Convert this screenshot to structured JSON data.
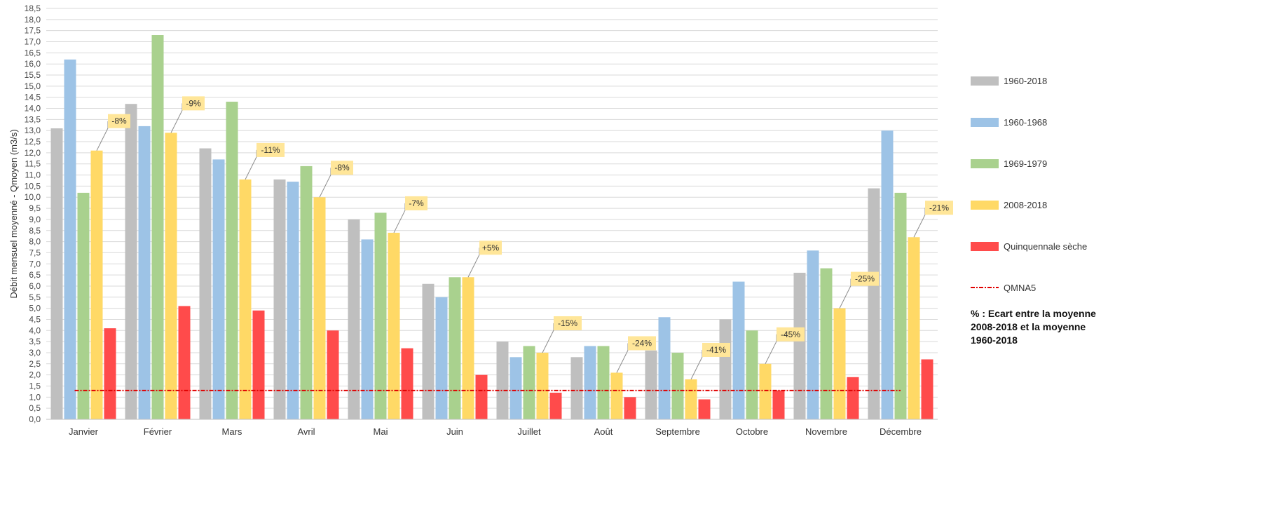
{
  "chart_data": {
    "type": "bar",
    "ylabel": "Débit mensuel moyenné - Qmoyen (m3/s)",
    "xlabel": "",
    "ylim": [
      0,
      18.5
    ],
    "y_tick_step": 0.5,
    "grid": true,
    "legend_position": "right",
    "categories": [
      "Janvier",
      "Février",
      "Mars",
      "Avril",
      "Mai",
      "Juin",
      "Juillet",
      "Août",
      "Septembre",
      "Octobre",
      "Novembre",
      "Décembre"
    ],
    "series": [
      {
        "name": "1960-2018",
        "color": "#bfbfbf",
        "values": [
          13.1,
          14.2,
          12.2,
          10.8,
          9.0,
          6.1,
          3.5,
          2.8,
          3.1,
          4.5,
          6.6,
          10.4
        ]
      },
      {
        "name": "1960-1968",
        "color": "#9dc3e6",
        "values": [
          16.2,
          13.2,
          11.7,
          10.7,
          8.1,
          5.5,
          2.8,
          3.3,
          4.6,
          6.2,
          7.6,
          13.0
        ]
      },
      {
        "name": "1969-1979",
        "color": "#a9d18e",
        "values": [
          10.2,
          17.3,
          14.3,
          11.4,
          9.3,
          6.4,
          3.3,
          3.3,
          3.0,
          4.0,
          6.8,
          10.2
        ]
      },
      {
        "name": "2008-2018",
        "color": "#ffd966",
        "values": [
          12.1,
          12.9,
          10.8,
          10.0,
          8.4,
          6.4,
          3.0,
          2.1,
          1.8,
          2.5,
          5.0,
          8.2
        ]
      },
      {
        "name": "Quinquennale sèche",
        "color": "#ff4b4b",
        "values": [
          4.1,
          5.1,
          4.9,
          4.0,
          3.2,
          2.0,
          1.2,
          1.0,
          0.9,
          1.3,
          1.9,
          2.7
        ]
      }
    ],
    "reference_line": {
      "name": "QMNA5",
      "value": 1.3,
      "color": "#e00000",
      "style": "dashed"
    },
    "annotations": [
      "-8%",
      "-9%",
      "-11%",
      "-8%",
      "-7%",
      "+5%",
      "-15%",
      "-24%",
      "-41%",
      "-45%",
      "-25%",
      "-21%"
    ],
    "annotation_color": "#ffe699",
    "note": [
      "% : Ecart entre la moyenne",
      "2008-2018 et la moyenne",
      "1960-2018"
    ]
  }
}
